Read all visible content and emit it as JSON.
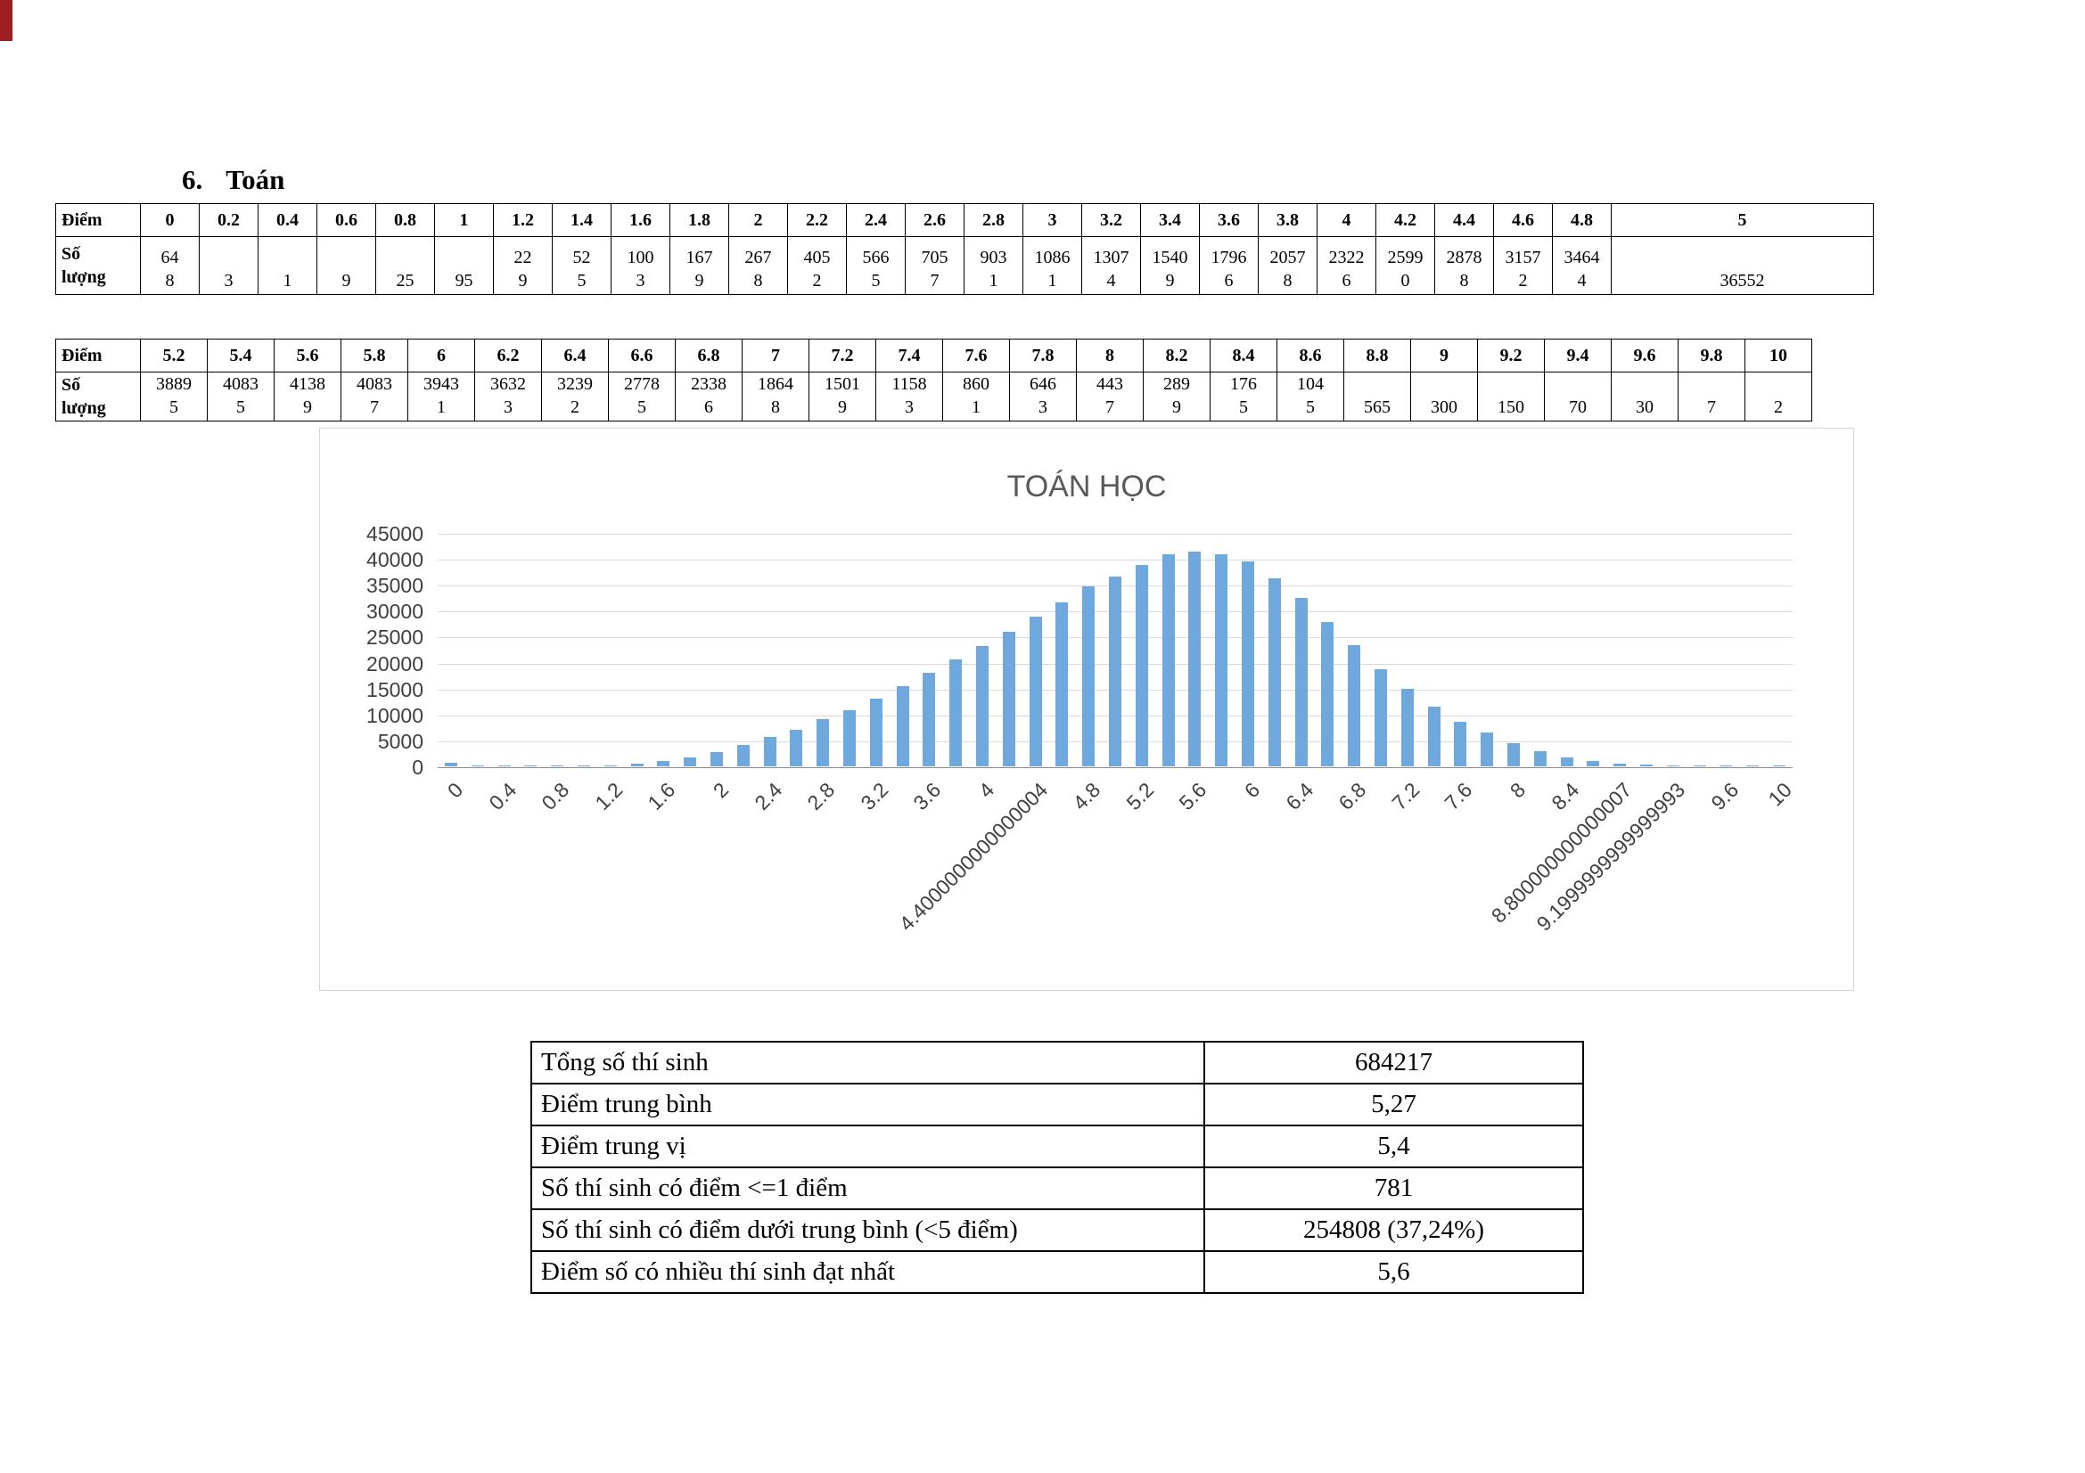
{
  "page": {
    "heading_number": "6.",
    "heading_title": "Toán"
  },
  "score_table_low": {
    "header_label": "Điểm",
    "count_label": "Số\nlượng",
    "scores": [
      "0",
      "0.2",
      "0.4",
      "0.6",
      "0.8",
      "1",
      "1.2",
      "1.4",
      "1.6",
      "1.8",
      "2",
      "2.2",
      "2.4",
      "2.6",
      "2.8",
      "3",
      "3.2",
      "3.4",
      "3.6",
      "3.8",
      "4",
      "4.2",
      "4.4",
      "4.6",
      "4.8",
      "5"
    ],
    "counts_display": [
      "64\n8",
      "3",
      "1",
      "9",
      "25",
      "95",
      "22\n9",
      "52\n5",
      "100\n3",
      "167\n9",
      "267\n8",
      "405\n2",
      "566\n5",
      "705\n7",
      "903\n1",
      "1086\n1",
      "1307\n4",
      "1540\n9",
      "1796\n6",
      "2057\n8",
      "2322\n6",
      "2599\n0",
      "2878\n8",
      "3157\n2",
      "3464\n4",
      "36552"
    ]
  },
  "score_table_high": {
    "header_label": "Điểm",
    "count_label": "Số\nlượng",
    "scores": [
      "5.2",
      "5.4",
      "5.6",
      "5.8",
      "6",
      "6.2",
      "6.4",
      "6.6",
      "6.8",
      "7",
      "7.2",
      "7.4",
      "7.6",
      "7.8",
      "8",
      "8.2",
      "8.4",
      "8.6",
      "8.8",
      "9",
      "9.2",
      "9.4",
      "9.6",
      "9.8",
      "10"
    ],
    "counts_display": [
      "3889\n5",
      "4083\n5",
      "4138\n9",
      "4083\n7",
      "3943\n1",
      "3632\n3",
      "3239\n2",
      "2778\n5",
      "2338\n6",
      "1864\n8",
      "1501\n9",
      "1158\n3",
      "860\n1",
      "646\n3",
      "443\n7",
      "289\n9",
      "176\n5",
      "104\n5",
      "565",
      "300",
      "150",
      "70",
      "30",
      "7",
      "2"
    ]
  },
  "chart_data": {
    "type": "bar",
    "title": "TOÁN HỌC",
    "x": [
      0,
      0.2,
      0.4,
      0.6,
      0.8,
      1,
      1.2,
      1.4,
      1.6,
      1.8,
      2,
      2.2,
      2.4,
      2.6,
      2.8,
      3,
      3.2,
      3.4,
      3.6,
      3.8,
      4,
      4.2,
      4.4,
      4.6,
      4.8,
      5,
      5.2,
      5.4,
      5.6,
      5.8,
      6,
      6.2,
      6.4,
      6.6,
      6.8,
      7,
      7.2,
      7.4,
      7.6,
      7.8,
      8,
      8.2,
      8.4,
      8.6,
      8.8,
      9,
      9.2,
      9.4,
      9.6,
      9.8,
      10
    ],
    "values": [
      648,
      3,
      1,
      9,
      25,
      95,
      229,
      525,
      1003,
      1679,
      2678,
      4052,
      5665,
      7057,
      9031,
      10861,
      13074,
      15409,
      17966,
      20578,
      23226,
      25990,
      28788,
      31572,
      34644,
      36552,
      38895,
      40835,
      41389,
      40837,
      39431,
      36323,
      32392,
      27785,
      23386,
      18648,
      15019,
      11583,
      8601,
      6463,
      4437,
      2899,
      1765,
      1045,
      565,
      300,
      150,
      70,
      30,
      7,
      2
    ],
    "xtick_labels": [
      "0",
      "0.4",
      "0.8",
      "1.2",
      "1.6",
      "2",
      "2.4",
      "2.8",
      "3.2",
      "3.6",
      "4",
      "4.4000000000000004",
      "4.8",
      "5.2",
      "5.6",
      "6",
      "6.4",
      "6.8",
      "7.2",
      "7.6",
      "8",
      "8.4",
      "8.800000000000007",
      "9.1999999999999993",
      "9.6",
      "10"
    ],
    "xtick_every": 2,
    "ylim": [
      0,
      45000
    ],
    "ytick_step": 5000,
    "ytick_labels": [
      "0",
      "5000",
      "10000",
      "15000",
      "20000",
      "25000",
      "30000",
      "35000",
      "40000",
      "45000"
    ],
    "xlabel": "",
    "ylabel": "",
    "grid": true,
    "legend": false,
    "bar_color": "#6fa8dc",
    "gridline_color": "#d9d9d9",
    "axis_text_color": "#3f3f3f",
    "title_color": "#595959"
  },
  "summary_table": {
    "rows": [
      {
        "label": "Tổng số thí sinh",
        "value": "684217"
      },
      {
        "label": "Điểm trung bình",
        "value": "5,27"
      },
      {
        "label": "Điểm trung vị",
        "value": "5,4"
      },
      {
        "label": "Số thí sinh có điểm <=1 điểm",
        "value": "781"
      },
      {
        "label": "Số thí sinh có điểm dưới trung bình (<5 điểm)",
        "value": "254808 (37,24%)"
      },
      {
        "label": "Điểm số có nhiều thí sinh đạt nhất",
        "value": "5,6"
      }
    ]
  }
}
